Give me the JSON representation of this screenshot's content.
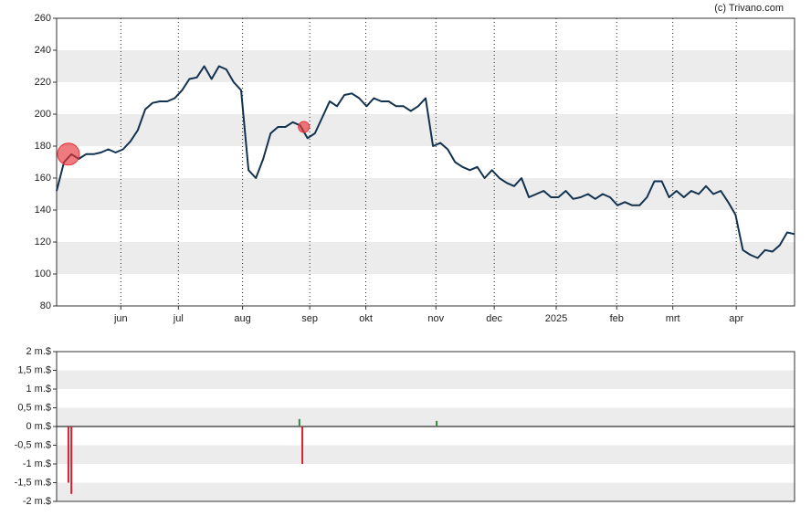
{
  "chart_data": [
    {
      "type": "line",
      "credit": "(c) Trivano.com",
      "color": "#12324f",
      "values": [
        152,
        170,
        175,
        172,
        175,
        175,
        176,
        178,
        176,
        178,
        183,
        190,
        203,
        207,
        208,
        208,
        210,
        215,
        222,
        223,
        230,
        222,
        230,
        228,
        220,
        215,
        165,
        160,
        172,
        188,
        192,
        192,
        195,
        193,
        185,
        188,
        198,
        208,
        205,
        212,
        213,
        210,
        205,
        210,
        208,
        208,
        205,
        205,
        202,
        205,
        210,
        180,
        182,
        178,
        170,
        167,
        165,
        167,
        160,
        165,
        160,
        157,
        155,
        160,
        148,
        150,
        152,
        148,
        148,
        152,
        147,
        148,
        150,
        147,
        150,
        148,
        143,
        145,
        143,
        143,
        148,
        158,
        158,
        148,
        152,
        148,
        152,
        150,
        155,
        150,
        152,
        145,
        137,
        115,
        112,
        110,
        115,
        114,
        118,
        126,
        125
      ],
      "markers": {
        "x": [
          1.6,
          33.5
        ],
        "values": [
          175,
          192
        ],
        "sizes": [
          12,
          6
        ],
        "color": "#e8343a"
      },
      "xlim": [
        0,
        100
      ],
      "xticks": [
        {
          "value": 8.7,
          "label": "jun"
        },
        {
          "value": 16.5,
          "label": "jul"
        },
        {
          "value": 25.2,
          "label": "aug"
        },
        {
          "value": 34.3,
          "label": "sep"
        },
        {
          "value": 41.9,
          "label": "okt"
        },
        {
          "value": 51.4,
          "label": "nov"
        },
        {
          "value": 59.3,
          "label": "dec"
        },
        {
          "value": 67.7,
          "label": "2025"
        },
        {
          "value": 75.9,
          "label": "feb"
        },
        {
          "value": 83.5,
          "label": "mrt"
        },
        {
          "value": 92.1,
          "label": "apr"
        }
      ],
      "ylim": [
        80,
        260
      ],
      "yticks": [
        80,
        100,
        120,
        140,
        160,
        180,
        200,
        220,
        240,
        260
      ],
      "grid": true
    },
    {
      "type": "bar",
      "x": [
        1.6,
        2.0,
        32.9,
        33.3,
        51.5
      ],
      "values": [
        -1.5,
        -1.8,
        0.2,
        -1,
        0.15
      ],
      "colors": [
        "#d62030",
        "#d62030",
        "#2e8b3e",
        "#d62030",
        "#2e8b3e"
      ],
      "xlim": [
        0,
        100
      ],
      "ylim": [
        -2,
        2
      ],
      "yticks": [
        {
          "value": -2,
          "label": "-2 m.$"
        },
        {
          "value": -1.5,
          "label": "-1,5 m.$"
        },
        {
          "value": -1,
          "label": "-1 m.$"
        },
        {
          "value": -0.5,
          "label": "-0,5 m.$"
        },
        {
          "value": 0,
          "label": "0 m.$"
        },
        {
          "value": 0.5,
          "label": "0,5 m.$"
        },
        {
          "value": 1,
          "label": "1 m.$"
        },
        {
          "value": 1.5,
          "label": "1,5 m.$"
        },
        {
          "value": 2,
          "label": "2 m.$"
        }
      ],
      "grid": true
    }
  ]
}
